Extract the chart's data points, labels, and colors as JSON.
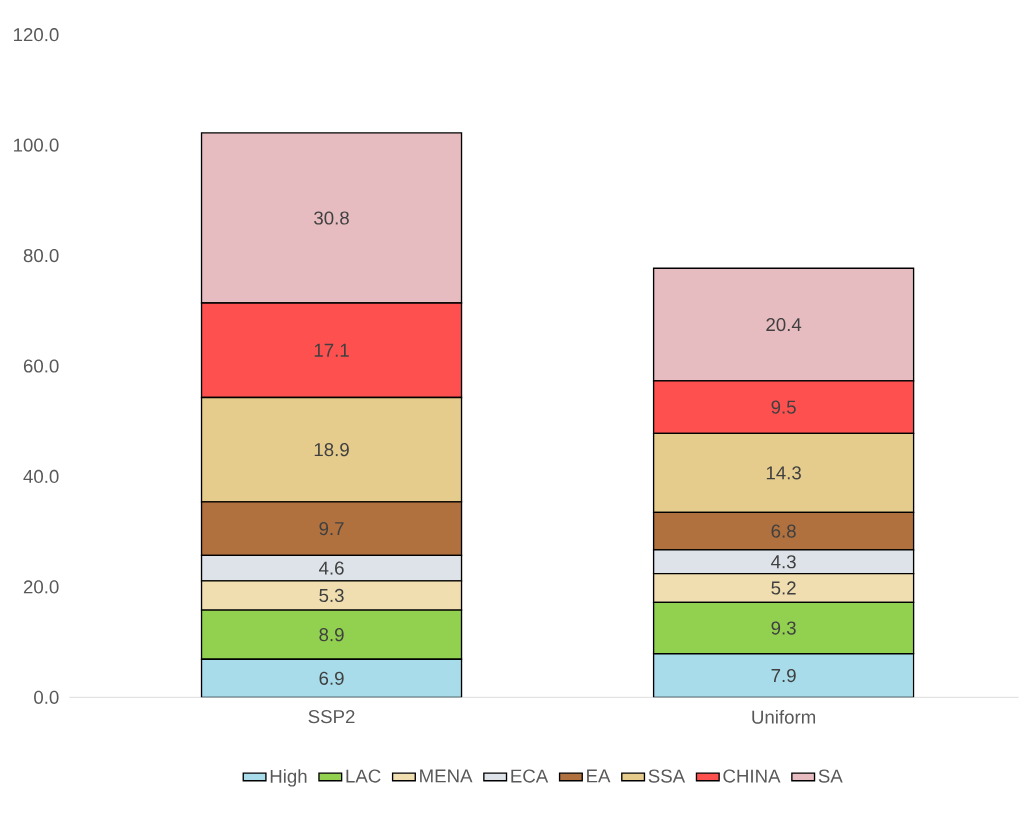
{
  "chart_data": {
    "type": "bar",
    "stacked": true,
    "categories": [
      "SSP2",
      "Uniform"
    ],
    "series": [
      {
        "name": "High",
        "color": "#a8dcea",
        "values": [
          6.9,
          7.9
        ]
      },
      {
        "name": "LAC",
        "color": "#92d050",
        "values": [
          8.9,
          9.3
        ]
      },
      {
        "name": "MENA",
        "color": "#f0ddb0",
        "values": [
          5.3,
          5.2
        ]
      },
      {
        "name": "ECA",
        "color": "#dde3e8",
        "values": [
          4.6,
          4.3
        ]
      },
      {
        "name": "EA",
        "color": "#b0713f",
        "values": [
          9.7,
          6.8
        ]
      },
      {
        "name": "SSA",
        "color": "#e6cc8c",
        "values": [
          18.9,
          14.3
        ]
      },
      {
        "name": "CHINA",
        "color": "#ff5050",
        "values": [
          17.1,
          9.5
        ]
      },
      {
        "name": "SA",
        "color": "#e6bcc0",
        "values": [
          30.8,
          20.4
        ]
      }
    ],
    "ylim": [
      0,
      120
    ],
    "yticks": [
      {
        "value": 0,
        "label": "0.0"
      },
      {
        "value": 20,
        "label": "20.0"
      },
      {
        "value": 40,
        "label": "40.0"
      },
      {
        "value": 60,
        "label": "60.0"
      },
      {
        "value": 80,
        "label": "80.0"
      },
      {
        "value": 100,
        "label": "100.0"
      },
      {
        "value": 120,
        "label": "120.0"
      }
    ],
    "data_labels": true,
    "legend": "bottom",
    "grid": false
  }
}
